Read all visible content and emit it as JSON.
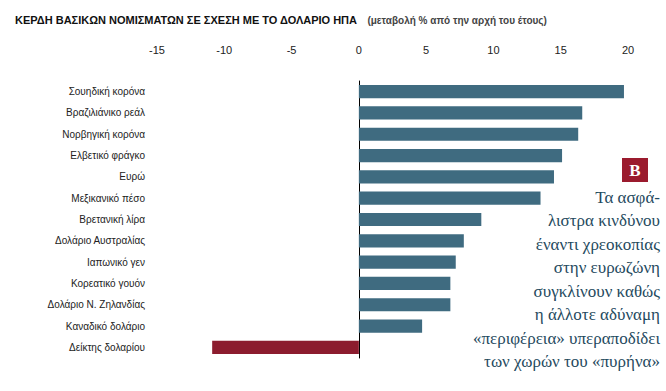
{
  "chart_data": {
    "type": "bar",
    "orientation": "horizontal",
    "title": "ΚΕΡΔΗ ΒΑΣΙΚΩΝ ΝΟΜΙΣΜΑΤΩΝ ΣΕ ΣΧΕΣΗ ΜΕ ΤΟ ΔΟΛΑΡΙΟ ΗΠΑ",
    "subtitle": "(μεταβολή % από την αρχή του έτους)",
    "categories": [
      "Σουηδική κορόνα",
      "Βραζιλιάνικο ρεάλ",
      "Νορβηγική κορόνα",
      "Ελβετικό φράγκο",
      "Ευρώ",
      "Μεξικανικό πέσο",
      "Βρετανική λίρα",
      "Δολάριο Αυστραλίας",
      "Ιαπωνικό γεν",
      "Κορεατικό γουόν",
      "Δολάριο Ν. Ζηλανδίας",
      "Καναδικό δολάριο",
      "Δείκτης δολαρίου"
    ],
    "values": [
      19.7,
      16.6,
      16.3,
      15.1,
      14.5,
      13.5,
      9.1,
      7.8,
      7.2,
      6.8,
      6.8,
      4.7,
      -10.9
    ],
    "colors": [
      "#3f6b80",
      "#3f6b80",
      "#3f6b80",
      "#3f6b80",
      "#3f6b80",
      "#3f6b80",
      "#3f6b80",
      "#3f6b80",
      "#3f6b80",
      "#3f6b80",
      "#3f6b80",
      "#3f6b80",
      "#8c1c2e"
    ],
    "xlim": [
      -15,
      20
    ],
    "xticks": [
      -15,
      -10,
      -5,
      0,
      5,
      10,
      15,
      20
    ],
    "grid": false,
    "annotation": {
      "label": "B",
      "lines": [
        "Τα ασφά-",
        "λιστρα κινδύνου",
        "έναντι χρεοκοπίας",
        "στην ευρωζώνη",
        "συγκλίνουν καθώς",
        "η άλλοτε αδύναμη",
        "«περιφέρεια» υπεραποδίδει",
        "των χωρών του «πυρήνα»"
      ]
    }
  }
}
